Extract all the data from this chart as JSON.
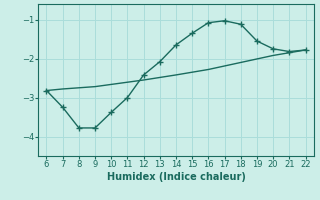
{
  "xlabel": "Humidex (Indice chaleur)",
  "bg_color": "#cceee8",
  "grid_color": "#aaddda",
  "line_color": "#1a6b5e",
  "xlim": [
    5.5,
    22.5
  ],
  "ylim": [
    -4.5,
    -0.6
  ],
  "xticks": [
    6,
    7,
    8,
    9,
    10,
    11,
    12,
    13,
    14,
    15,
    16,
    17,
    18,
    19,
    20,
    21,
    22
  ],
  "yticks": [
    -4,
    -3,
    -2,
    -1
  ],
  "line1_x": [
    6,
    7,
    8,
    9,
    10,
    11,
    12,
    13,
    14,
    15,
    16,
    17,
    18,
    19,
    20,
    21,
    22
  ],
  "line1_y": [
    -2.82,
    -3.25,
    -3.78,
    -3.78,
    -3.38,
    -3.0,
    -2.42,
    -2.08,
    -1.65,
    -1.35,
    -1.08,
    -1.03,
    -1.12,
    -1.55,
    -1.75,
    -1.82,
    -1.78
  ],
  "line2_x": [
    6,
    7,
    9,
    12,
    14,
    16,
    18,
    20,
    22
  ],
  "line2_y": [
    -2.82,
    -2.78,
    -2.72,
    -2.55,
    -2.42,
    -2.28,
    -2.1,
    -1.92,
    -1.78
  ]
}
